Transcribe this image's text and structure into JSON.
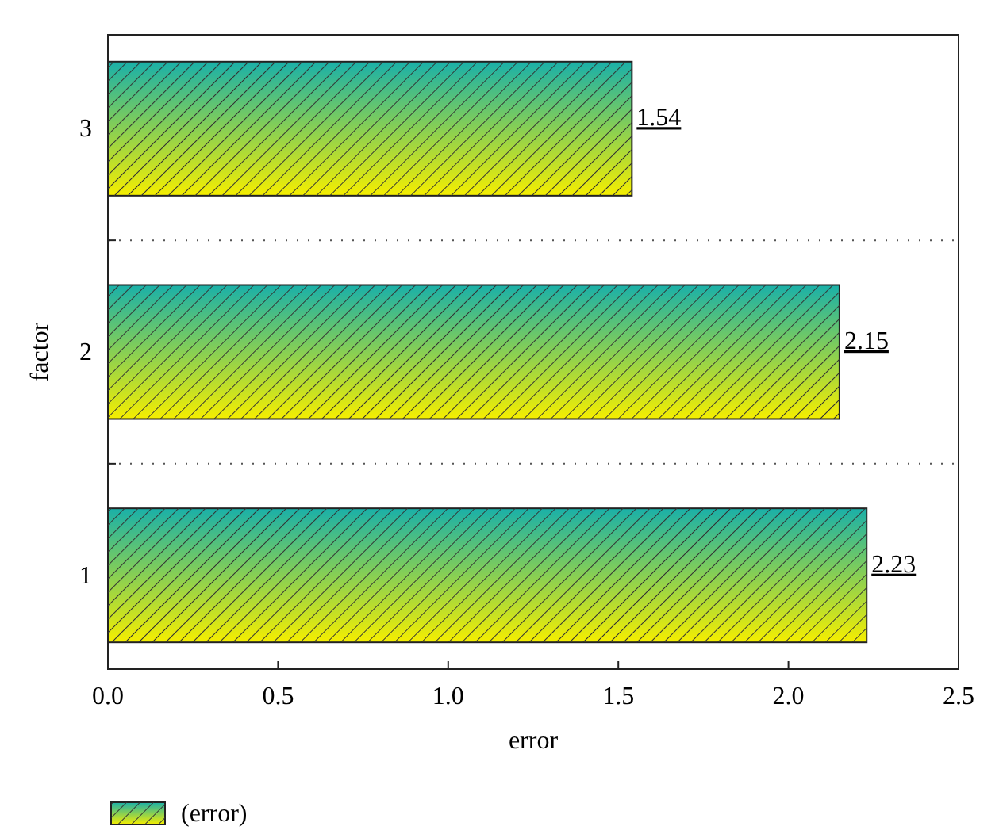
{
  "chart_data": {
    "type": "bar",
    "orientation": "horizontal",
    "xlabel": "error",
    "ylabel": "factor",
    "categories": [
      "3",
      "2",
      "1"
    ],
    "series": [
      {
        "name": "(error)",
        "color": "#1ab0a8",
        "values": [
          1.54,
          2.15,
          2.23
        ]
      }
    ],
    "xlim": [
      0,
      2.5
    ],
    "xticks": [
      {
        "value": 0,
        "label": "0.0"
      },
      {
        "value": 0.5,
        "label": "0.5"
      },
      {
        "value": 1,
        "label": "1.0"
      },
      {
        "value": 1.5,
        "label": "1.5"
      },
      {
        "value": 2,
        "label": "2.0"
      },
      {
        "value": 2.5,
        "label": "2.5"
      }
    ],
    "grid": "y",
    "data_labels": true,
    "legend": "bottom"
  }
}
